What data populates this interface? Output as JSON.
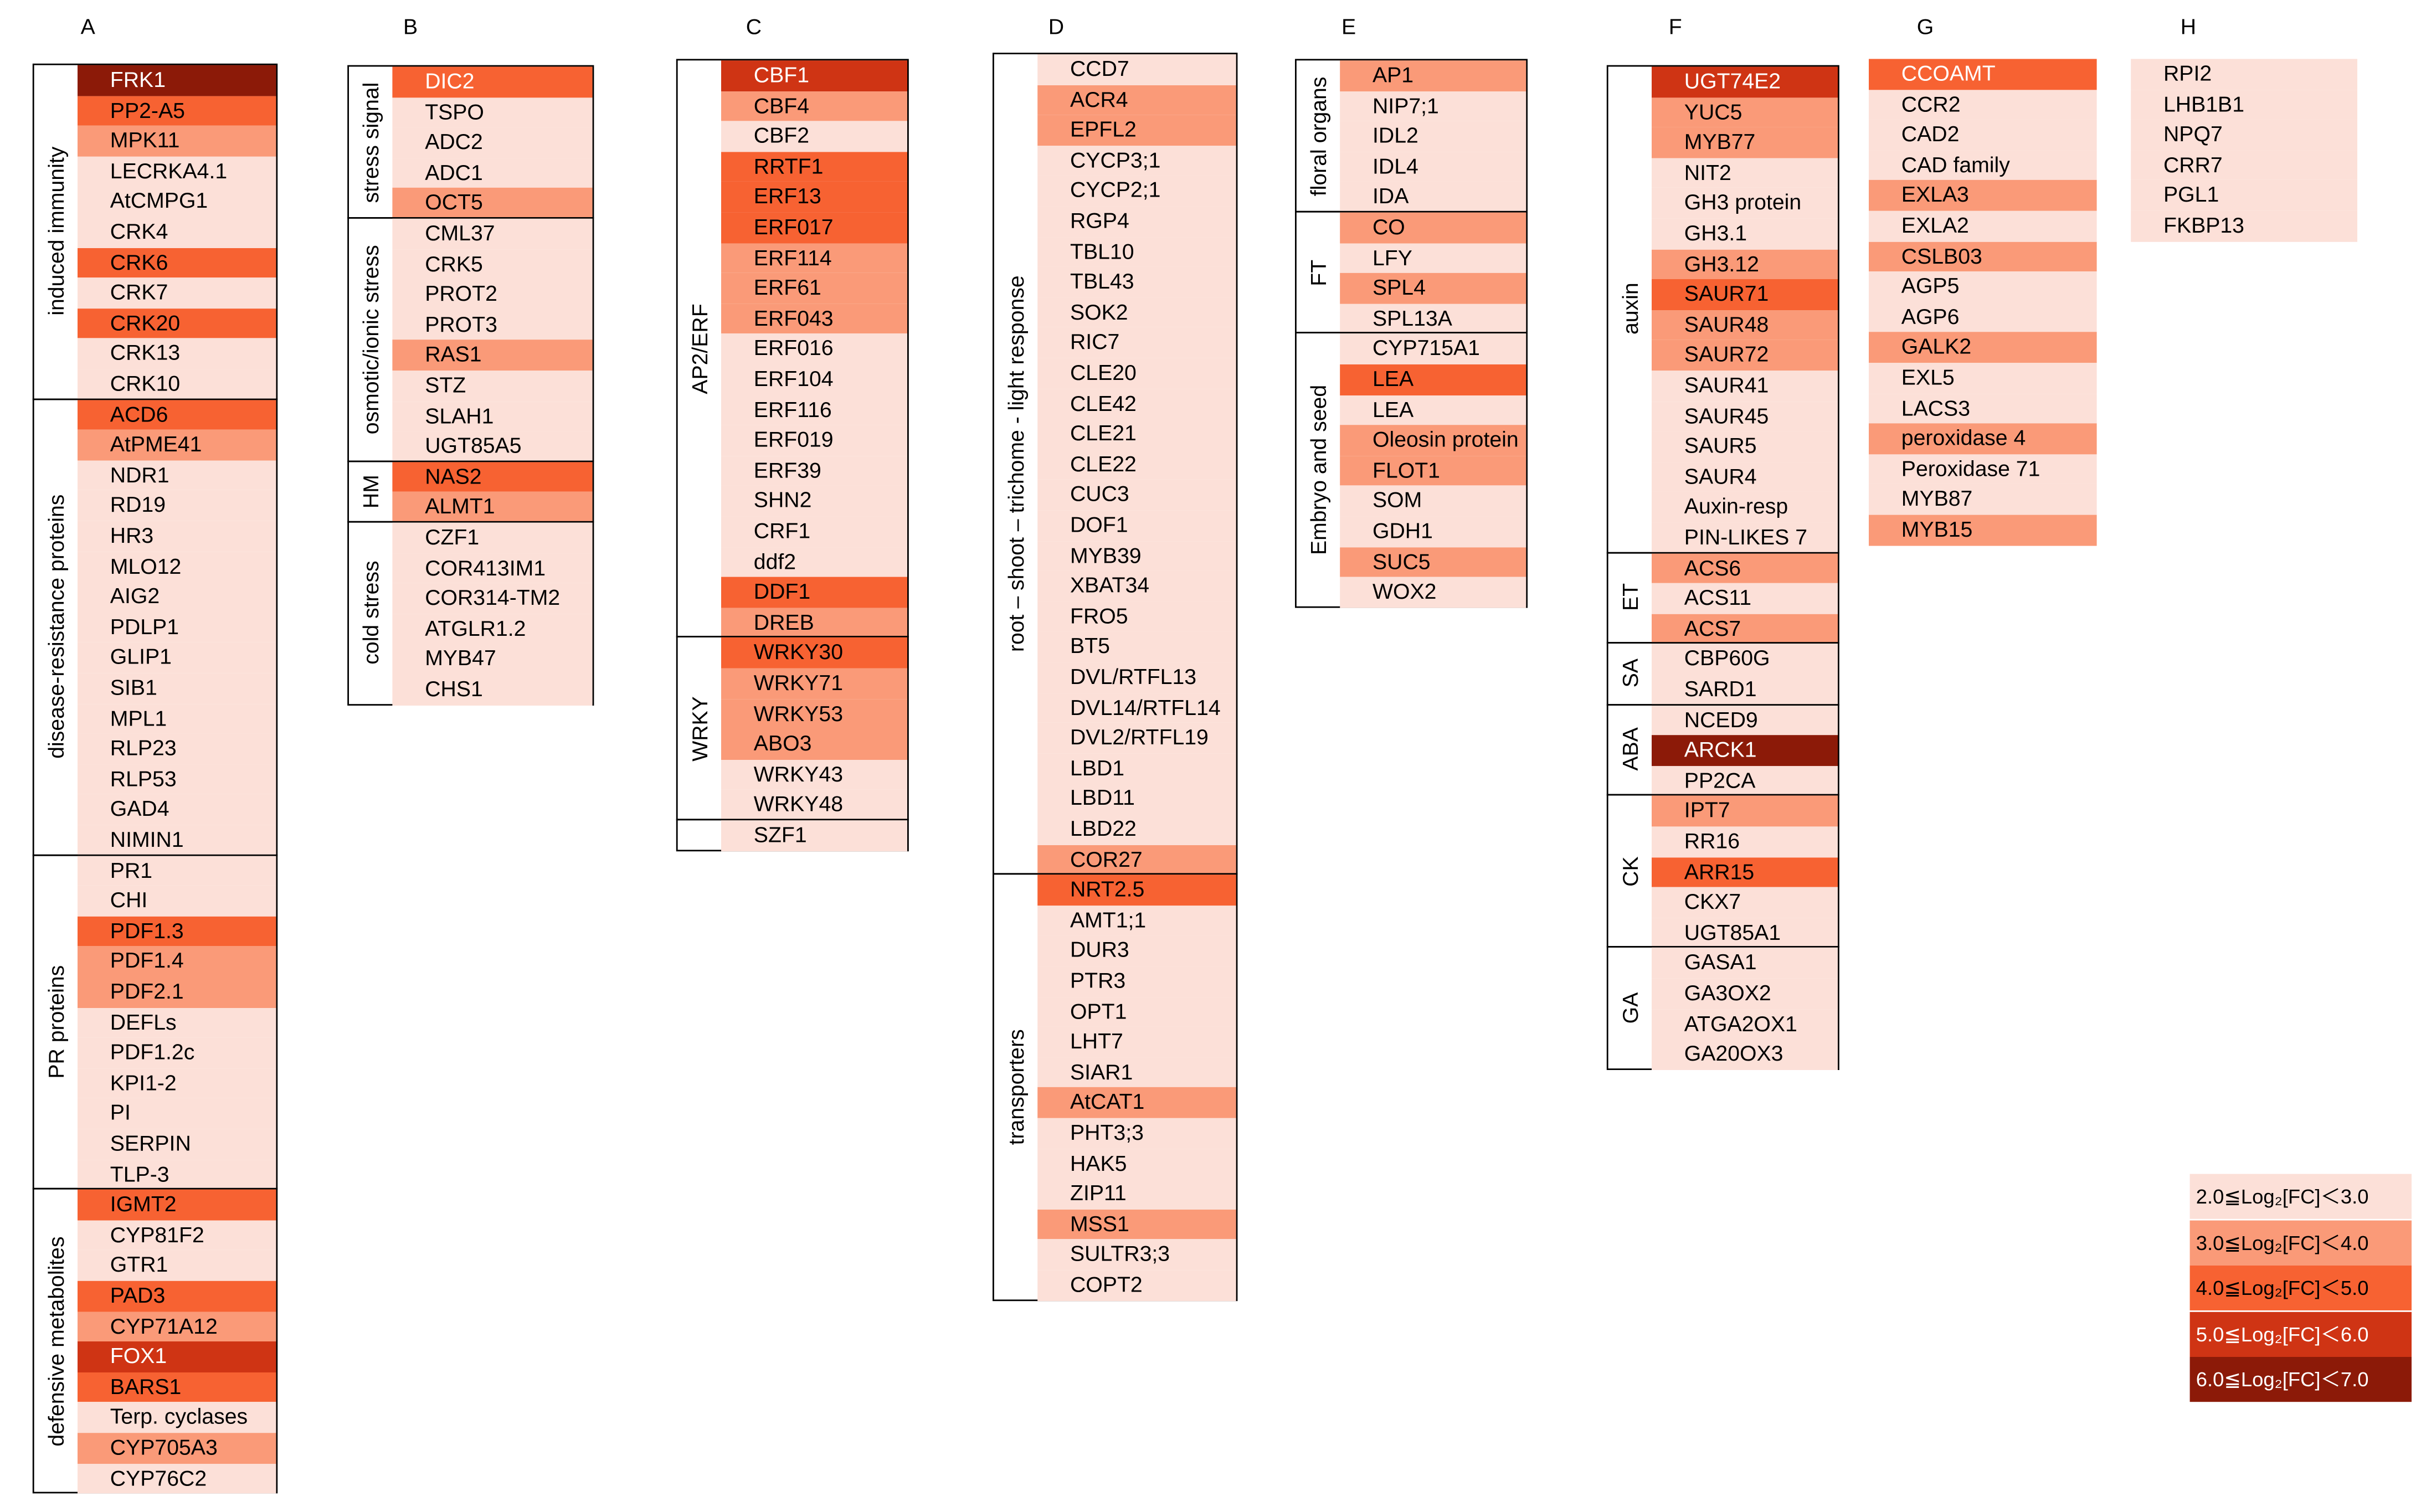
{
  "palette": {
    "c1": "#fce0d8",
    "c2": "#fa9a78",
    "c3": "#f76232",
    "c4": "#cf3414",
    "c5": "#8c1a08"
  },
  "columns": [
    {
      "letter": "A",
      "groups": [
        {
          "label": "induced immunity",
          "genes": [
            [
              "FRK1",
              5
            ],
            [
              "PP2-A5",
              3
            ],
            [
              "MPK11",
              2
            ],
            [
              "LECRKA4.1",
              1
            ],
            [
              "AtCMPG1",
              1
            ],
            [
              "CRK4",
              1
            ],
            [
              "CRK6",
              3
            ],
            [
              "CRK7",
              1
            ],
            [
              "CRK20",
              3
            ],
            [
              "CRK13",
              1
            ],
            [
              "CRK10",
              1
            ]
          ]
        },
        {
          "label": "disease-resistance proteins",
          "genes": [
            [
              "ACD6",
              3
            ],
            [
              "AtPME41",
              2
            ],
            [
              "NDR1",
              1
            ],
            [
              "RD19",
              1
            ],
            [
              "HR3",
              1
            ],
            [
              "MLO12",
              1
            ],
            [
              "AIG2",
              1
            ],
            [
              "PDLP1",
              1
            ],
            [
              "GLIP1",
              1
            ],
            [
              "SIB1",
              1
            ],
            [
              "MPL1",
              1
            ],
            [
              "RLP23",
              1
            ],
            [
              "RLP53",
              1
            ],
            [
              "GAD4",
              1
            ],
            [
              "NIMIN1",
              1
            ]
          ]
        },
        {
          "label": "PR proteins",
          "genes": [
            [
              "PR1",
              1
            ],
            [
              "CHI",
              1
            ],
            [
              "PDF1.3",
              3
            ],
            [
              "PDF1.4",
              2
            ],
            [
              "PDF2.1",
              2
            ],
            [
              "DEFLs",
              1
            ],
            [
              "PDF1.2c",
              1
            ],
            [
              "KPI1-2",
              1
            ],
            [
              "PI",
              1
            ],
            [
              "SERPIN",
              1
            ],
            [
              "TLP-3",
              1
            ]
          ]
        },
        {
          "label": "defensive metabolites",
          "genes": [
            [
              "IGMT2",
              3
            ],
            [
              "CYP81F2",
              1
            ],
            [
              "GTR1",
              1
            ],
            [
              "PAD3",
              3
            ],
            [
              "CYP71A12",
              2
            ],
            [
              "FOX1",
              4
            ],
            [
              "BARS1",
              3
            ],
            [
              "Terp. cyclases",
              1
            ],
            [
              "CYP705A3",
              2
            ],
            [
              "CYP76C2",
              1
            ]
          ]
        }
      ]
    },
    {
      "letter": "B",
      "groups": [
        {
          "label": "stress signal",
          "genes": [
            [
              "DIC2",
              3
            ],
            [
              "TSPO",
              1
            ],
            [
              "ADC2",
              1
            ],
            [
              "ADC1",
              1
            ],
            [
              "OCT5",
              2
            ]
          ]
        },
        {
          "label": "osmotic/ionic stress",
          "genes": [
            [
              "CML37",
              1
            ],
            [
              "CRK5",
              1
            ],
            [
              "PROT2",
              1
            ],
            [
              "PROT3",
              1
            ],
            [
              "RAS1",
              2
            ],
            [
              "STZ",
              1
            ],
            [
              "SLAH1",
              1
            ],
            [
              "UGT85A5",
              1
            ]
          ]
        },
        {
          "label": "HM",
          "genes": [
            [
              "NAS2",
              3
            ],
            [
              "ALMT1",
              2
            ]
          ]
        },
        {
          "label": "cold stress",
          "genes": [
            [
              "CZF1",
              1
            ],
            [
              "COR413IM1",
              1
            ],
            [
              "COR314-TM2",
              1
            ],
            [
              "ATGLR1.2",
              1
            ],
            [
              "MYB47",
              1
            ],
            [
              "CHS1",
              1
            ]
          ]
        }
      ]
    },
    {
      "letter": "C",
      "groups": [
        {
          "label": "AP2/ERF",
          "genes": [
            [
              "CBF1",
              4
            ],
            [
              "CBF4",
              2
            ],
            [
              "CBF2",
              1
            ],
            [
              "RRTF1",
              3
            ],
            [
              "ERF13",
              3
            ],
            [
              "ERF017",
              3
            ],
            [
              "ERF114",
              2
            ],
            [
              "ERF61",
              2
            ],
            [
              "ERF043",
              2
            ],
            [
              "ERF016",
              1
            ],
            [
              "ERF104",
              1
            ],
            [
              "ERF116",
              1
            ],
            [
              "ERF019",
              1
            ],
            [
              "ERF39",
              1
            ],
            [
              "SHN2",
              1
            ],
            [
              "CRF1",
              1
            ],
            [
              "ddf2",
              1
            ],
            [
              "DDF1",
              3
            ],
            [
              "DREB",
              2
            ]
          ]
        },
        {
          "label": "WRKY",
          "genes": [
            [
              "WRKY30",
              3
            ],
            [
              "WRKY71",
              2
            ],
            [
              "WRKY53",
              2
            ],
            [
              "ABO3",
              2
            ],
            [
              "WRKY43",
              1
            ],
            [
              "WRKY48",
              1
            ]
          ]
        },
        {
          "label": "",
          "genes": [
            [
              "SZF1",
              1
            ]
          ]
        }
      ]
    },
    {
      "letter": "D",
      "groups": [
        {
          "label": "root – shoot – trichome - light response",
          "genes": [
            [
              "CCD7",
              1
            ],
            [
              "ACR4",
              2
            ],
            [
              "EPFL2",
              2
            ],
            [
              "CYCP3;1",
              1
            ],
            [
              "CYCP2;1",
              1
            ],
            [
              "RGP4",
              1
            ],
            [
              "TBL10",
              1
            ],
            [
              "TBL43",
              1
            ],
            [
              "SOK2",
              1
            ],
            [
              "RIC7",
              1
            ],
            [
              "CLE20",
              1
            ],
            [
              "CLE42",
              1
            ],
            [
              "CLE21",
              1
            ],
            [
              "CLE22",
              1
            ],
            [
              "CUC3",
              1
            ],
            [
              "DOF1",
              1
            ],
            [
              "MYB39",
              1
            ],
            [
              "XBAT34",
              1
            ],
            [
              "FRO5",
              1
            ],
            [
              "BT5",
              1
            ],
            [
              "DVL/RTFL13",
              1
            ],
            [
              "DVL14/RTFL14",
              1
            ],
            [
              "DVL2/RTFL19",
              1
            ],
            [
              "LBD1",
              1
            ],
            [
              "LBD11",
              1
            ],
            [
              "LBD22",
              1
            ],
            [
              "COR27",
              2
            ]
          ]
        },
        {
          "label": "transporters",
          "genes": [
            [
              "NRT2.5",
              3
            ],
            [
              "AMT1;1",
              1
            ],
            [
              "DUR3",
              1
            ],
            [
              "PTR3",
              1
            ],
            [
              "OPT1",
              1
            ],
            [
              "LHT7",
              1
            ],
            [
              "SIAR1",
              1
            ],
            [
              "AtCAT1",
              2
            ],
            [
              "PHT3;3",
              1
            ],
            [
              "HAK5",
              1
            ],
            [
              "ZIP11",
              1
            ],
            [
              "MSS1",
              2
            ],
            [
              "SULTR3;3",
              1
            ],
            [
              "COPT2",
              1
            ]
          ]
        }
      ]
    },
    {
      "letter": "E",
      "groups": [
        {
          "label": "floral organs",
          "genes": [
            [
              "AP1",
              2
            ],
            [
              "NIP7;1",
              1
            ],
            [
              "IDL2",
              1
            ],
            [
              "IDL4",
              1
            ],
            [
              "IDA",
              1
            ]
          ]
        },
        {
          "label": "FT",
          "genes": [
            [
              "CO",
              2
            ],
            [
              "LFY",
              1
            ],
            [
              "SPL4",
              2
            ],
            [
              "SPL13A",
              1
            ]
          ]
        },
        {
          "label": "Embryo and seed",
          "genes": [
            [
              "CYP715A1",
              1
            ],
            [
              "LEA",
              3
            ],
            [
              "LEA",
              1
            ],
            [
              "Oleosin protein",
              2
            ],
            [
              "FLOT1",
              2
            ],
            [
              "SOM",
              1
            ],
            [
              "GDH1",
              1
            ],
            [
              "SUC5",
              2
            ],
            [
              "WOX2",
              1
            ]
          ]
        }
      ]
    },
    {
      "letter": "F",
      "groups": [
        {
          "label": "auxin",
          "genes": [
            [
              "UGT74E2",
              4
            ],
            [
              "YUC5",
              2
            ],
            [
              "MYB77",
              2
            ],
            [
              "NIT2",
              1
            ],
            [
              "GH3 protein",
              1
            ],
            [
              "GH3.1",
              1
            ],
            [
              "GH3.12",
              2
            ],
            [
              "SAUR71",
              3
            ],
            [
              "SAUR48",
              2
            ],
            [
              "SAUR72",
              2
            ],
            [
              "SAUR41",
              1
            ],
            [
              "SAUR45",
              1
            ],
            [
              "SAUR5",
              1
            ],
            [
              "SAUR4",
              1
            ],
            [
              "Auxin-resp",
              1
            ],
            [
              "PIN-LIKES 7",
              1
            ]
          ]
        },
        {
          "label": "ET",
          "genes": [
            [
              "ACS6",
              2
            ],
            [
              "ACS11",
              1
            ],
            [
              "ACS7",
              2
            ]
          ]
        },
        {
          "label": "SA",
          "genes": [
            [
              "CBP60G",
              1
            ],
            [
              "SARD1",
              1
            ]
          ]
        },
        {
          "label": "ABA",
          "genes": [
            [
              "NCED9",
              1
            ],
            [
              "ARCK1",
              5
            ],
            [
              "PP2CA",
              1
            ]
          ]
        },
        {
          "label": "CK",
          "genes": [
            [
              "IPT7",
              2
            ],
            [
              "RR16",
              1
            ],
            [
              "ARR15",
              3
            ],
            [
              "CKX7",
              1
            ],
            [
              "UGT85A1",
              1
            ]
          ]
        },
        {
          "label": "GA",
          "genes": [
            [
              "GASA1",
              1
            ],
            [
              "GA3OX2",
              1
            ],
            [
              "ATGA2OX1",
              1
            ],
            [
              "GA20OX3",
              1
            ]
          ]
        }
      ]
    },
    {
      "letter": "G",
      "groups": [
        {
          "label": "",
          "genes": [
            [
              "CCOAMT",
              3
            ],
            [
              "CCR2",
              1
            ],
            [
              "CAD2",
              1
            ],
            [
              "CAD family",
              1
            ],
            [
              "EXLA3",
              2
            ],
            [
              "EXLA2",
              1
            ],
            [
              "CSLB03",
              2
            ],
            [
              "AGP5",
              1
            ],
            [
              "AGP6",
              1
            ],
            [
              "GALK2",
              2
            ],
            [
              "EXL5",
              1
            ],
            [
              "LACS3",
              1
            ],
            [
              "peroxidase 4",
              2
            ],
            [
              "Peroxidase 71",
              1
            ],
            [
              "MYB87",
              1
            ],
            [
              "MYB15",
              2
            ]
          ]
        }
      ]
    },
    {
      "letter": "H",
      "groups": [
        {
          "label": "",
          "genes": [
            [
              "RPI2",
              1
            ],
            [
              "LHB1B1",
              1
            ],
            [
              "NPQ7",
              1
            ],
            [
              "CRR7",
              1
            ],
            [
              "PGL1",
              1
            ],
            [
              "FKBP13",
              1
            ]
          ]
        }
      ]
    }
  ],
  "legend": [
    {
      "label": "2.0≦Log₂[FC]＜3.0",
      "level": 1
    },
    {
      "label": "3.0≦Log₂[FC]＜4.0",
      "level": 2
    },
    {
      "label": "4.0≦Log₂[FC]＜5.0",
      "level": 3
    },
    {
      "label": "5.0≦Log₂[FC]＜6.0",
      "level": 4
    },
    {
      "label": "6.0≦Log₂[FC]＜7.0",
      "level": 5
    }
  ]
}
